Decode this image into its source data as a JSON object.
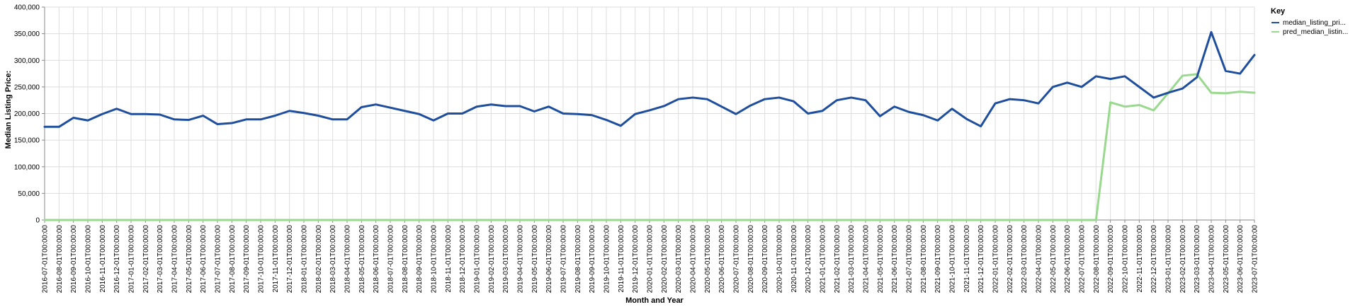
{
  "chart_data": {
    "type": "line",
    "xlabel": "Month and Year",
    "ylabel": "Median Listing Price:",
    "ylim": [
      0,
      400000
    ],
    "y_ticks": [
      "0",
      "50,000",
      "100,000",
      "150,000",
      "200,000",
      "250,000",
      "300,000",
      "350,000",
      "400,000"
    ],
    "y_tick_values": [
      0,
      50000,
      100000,
      150000,
      200000,
      250000,
      300000,
      350000,
      400000
    ],
    "grid": true,
    "legend_position": "top-right",
    "legend_title": "Key",
    "x": [
      "2016-07-01T00:00:00",
      "2016-08-01T00:00:00",
      "2016-09-01T00:00:00",
      "2016-10-01T00:00:00",
      "2016-11-01T00:00:00",
      "2016-12-01T00:00:00",
      "2017-01-01T00:00:00",
      "2017-02-01T00:00:00",
      "2017-03-01T00:00:00",
      "2017-04-01T00:00:00",
      "2017-05-01T00:00:00",
      "2017-06-01T00:00:00",
      "2017-07-01T00:00:00",
      "2017-08-01T00:00:00",
      "2017-09-01T00:00:00",
      "2017-10-01T00:00:00",
      "2017-11-01T00:00:00",
      "2017-12-01T00:00:00",
      "2018-01-01T00:00:00",
      "2018-02-01T00:00:00",
      "2018-03-01T00:00:00",
      "2018-04-01T00:00:00",
      "2018-05-01T00:00:00",
      "2018-06-01T00:00:00",
      "2018-07-01T00:00:00",
      "2018-08-01T00:00:00",
      "2018-09-01T00:00:00",
      "2018-10-01T00:00:00",
      "2018-11-01T00:00:00",
      "2018-12-01T00:00:00",
      "2019-01-01T00:00:00",
      "2019-02-01T00:00:00",
      "2019-03-01T00:00:00",
      "2019-04-01T00:00:00",
      "2019-05-01T00:00:00",
      "2019-06-01T00:00:00",
      "2019-07-01T00:00:00",
      "2019-08-01T00:00:00",
      "2019-09-01T00:00:00",
      "2019-10-01T00:00:00",
      "2019-11-01T00:00:00",
      "2019-12-01T00:00:00",
      "2020-01-01T00:00:00",
      "2020-02-01T00:00:00",
      "2020-03-01T00:00:00",
      "2020-04-01T00:00:00",
      "2020-05-01T00:00:00",
      "2020-06-01T00:00:00",
      "2020-07-01T00:00:00",
      "2020-08-01T00:00:00",
      "2020-09-01T00:00:00",
      "2020-10-01T00:00:00",
      "2020-11-01T00:00:00",
      "2020-12-01T00:00:00",
      "2021-01-01T00:00:00",
      "2021-02-01T00:00:00",
      "2021-03-01T00:00:00",
      "2021-04-01T00:00:00",
      "2021-05-01T00:00:00",
      "2021-06-01T00:00:00",
      "2021-07-01T00:00:00",
      "2021-08-01T00:00:00",
      "2021-09-01T00:00:00",
      "2021-10-01T00:00:00",
      "2021-11-01T00:00:00",
      "2021-12-01T00:00:00",
      "2022-01-01T00:00:00",
      "2022-02-01T00:00:00",
      "2022-03-01T00:00:00",
      "2022-04-01T00:00:00",
      "2022-05-01T00:00:00",
      "2022-06-01T00:00:00",
      "2022-07-01T00:00:00",
      "2022-08-01T00:00:00",
      "2022-09-01T00:00:00",
      "2022-10-01T00:00:00",
      "2022-11-01T00:00:00",
      "2022-12-01T00:00:00",
      "2023-01-01T00:00:00",
      "2023-02-01T00:00:00",
      "2023-03-01T00:00:00",
      "2023-04-01T00:00:00",
      "2023-05-01T00:00:00",
      "2023-06-01T00:00:00",
      "2023-07-01T00:00:00"
    ],
    "series": [
      {
        "name": "median_listing_pri...",
        "color": "#1f4e9c",
        "values": [
          175000,
          175000,
          192000,
          187000,
          199000,
          209000,
          199000,
          199000,
          198000,
          189000,
          188000,
          196000,
          180000,
          182000,
          189000,
          189000,
          196000,
          205000,
          201000,
          196000,
          189000,
          189000,
          212000,
          217000,
          211000,
          205000,
          199000,
          187000,
          200000,
          200000,
          213000,
          217000,
          214000,
          214000,
          204000,
          213000,
          200000,
          199000,
          197000,
          188000,
          177000,
          199000,
          206000,
          214000,
          227000,
          230000,
          227000,
          213000,
          199000,
          215000,
          227000,
          230000,
          223000,
          200000,
          205000,
          225000,
          230000,
          225000,
          195000,
          213000,
          203000,
          197000,
          187000,
          209000,
          190000,
          176000,
          219000,
          227000,
          225000,
          219000,
          250000,
          258000,
          250000,
          270000,
          265000,
          270000,
          250000,
          230000,
          239000,
          247000,
          268000,
          353000,
          280000,
          275000,
          310000
        ]
      },
      {
        "name": "pred_median_listin...",
        "color": "#9ad88f",
        "values": [
          0,
          0,
          0,
          0,
          0,
          0,
          0,
          0,
          0,
          0,
          0,
          0,
          0,
          0,
          0,
          0,
          0,
          0,
          0,
          0,
          0,
          0,
          0,
          0,
          0,
          0,
          0,
          0,
          0,
          0,
          0,
          0,
          0,
          0,
          0,
          0,
          0,
          0,
          0,
          0,
          0,
          0,
          0,
          0,
          0,
          0,
          0,
          0,
          0,
          0,
          0,
          0,
          0,
          0,
          0,
          0,
          0,
          0,
          0,
          0,
          0,
          0,
          0,
          0,
          0,
          0,
          0,
          0,
          0,
          0,
          0,
          0,
          0,
          0,
          221000,
          213000,
          216000,
          206000,
          238000,
          271000,
          274000,
          239000,
          238000,
          241000,
          239000
        ]
      }
    ]
  }
}
